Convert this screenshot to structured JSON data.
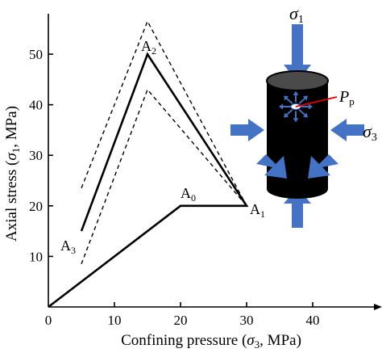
{
  "chart_data": {
    "type": "line",
    "xlabel": "Confining pressure (σ3, MPa)",
    "ylabel": "Axial stress (σ1, MPa)",
    "xlim": [
      0,
      50
    ],
    "ylim": [
      0,
      58
    ],
    "xticks": [
      0,
      10,
      20,
      30,
      40
    ],
    "yticks": [
      10,
      20,
      30,
      40,
      50
    ],
    "grid": false,
    "series": [
      {
        "style": "solid",
        "x": [
          0,
          20,
          30,
          15,
          5
        ],
        "y": [
          0,
          20,
          20,
          50,
          15
        ]
      },
      {
        "style": "dashed",
        "x": [
          5,
          15,
          30
        ],
        "y": [
          23.5,
          56.5,
          20
        ]
      },
      {
        "style": "dashed",
        "x": [
          5,
          15,
          30
        ],
        "y": [
          8.5,
          43,
          20
        ]
      }
    ],
    "point_labels": [
      {
        "text": "A",
        "sub": "0",
        "x": 20,
        "y": 20
      },
      {
        "text": "A",
        "sub": "1",
        "x": 30,
        "y": 20
      },
      {
        "text": "A",
        "sub": "2",
        "x": 15,
        "y": 50
      },
      {
        "text": "A",
        "sub": "3",
        "x": 5,
        "y": 15
      }
    ]
  },
  "labels": {
    "sigma1": "σ",
    "sigma1_sub": "1",
    "sigma3": "σ",
    "sigma3_sub": "3",
    "pp": "P",
    "pp_sub": "p"
  },
  "colors": {
    "arrow": "#4472c4",
    "sample": "#000000",
    "pp_line": "#e00000",
    "pp_dot": "#ffffff"
  }
}
